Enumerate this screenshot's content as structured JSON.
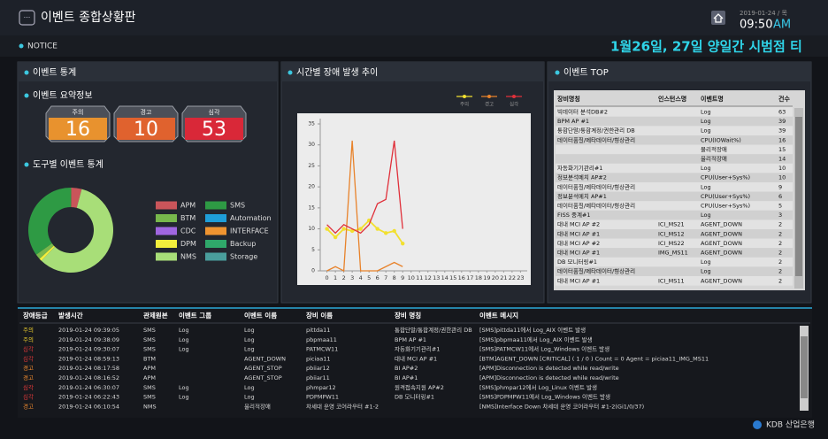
{
  "header": {
    "title": "이벤트 종합상황판",
    "date": "2019-01-24 / 목",
    "time": "09:50",
    "ampm": "AM"
  },
  "notice": {
    "label": "NOTICE",
    "text": "1월26일, 27일 양일간 시범점 티"
  },
  "stats": {
    "title": "이벤트 통계",
    "summary_title": "이벤트 요약정보",
    "summary": [
      {
        "label": "주의",
        "value": 16,
        "color": "#e8922e"
      },
      {
        "label": "경고",
        "value": 10,
        "color": "#e0622e"
      },
      {
        "label": "심각",
        "value": 53,
        "color": "#d92838"
      }
    ],
    "tool_title": "도구별 이벤트 통계"
  },
  "trend": {
    "title": "시간별 장애 발생 추이"
  },
  "chart_data": [
    {
      "type": "donut",
      "categories": [
        "APM",
        "SMS",
        "BTM",
        "Automation",
        "CDC",
        "INTERFACE",
        "DPM",
        "Backup",
        "NMS",
        "Storage"
      ],
      "values": [
        4,
        35,
        2,
        0,
        0,
        0,
        1,
        0,
        58,
        0
      ],
      "colors": [
        "#c9555a",
        "#2e9a44",
        "#78b84c",
        "#1f9ed8",
        "#a066e0",
        "#ef9430",
        "#f3ee3c",
        "#2fa86a",
        "#a8de78",
        "#4a9e9c"
      ]
    },
    {
      "type": "line",
      "x": [
        0,
        1,
        2,
        3,
        4,
        5,
        6,
        7,
        8,
        9,
        10,
        11,
        12,
        13,
        14,
        15,
        16,
        17,
        18,
        19,
        20,
        21,
        22,
        23
      ],
      "xlim": [
        -0.8,
        23.8
      ],
      "xticks": [
        0,
        1,
        2,
        3,
        4,
        5,
        6,
        7,
        8,
        9,
        10,
        11,
        12,
        13,
        14,
        15,
        16,
        17,
        18,
        19,
        20,
        21,
        22,
        23
      ],
      "ylim": [
        0,
        35
      ],
      "yticks": [
        0,
        5,
        10,
        15,
        20,
        25,
        30,
        35
      ],
      "grid": false,
      "series": [
        {
          "name": "주의",
          "color": "#f2e030",
          "values": [
            10,
            8,
            10,
            9.5,
            10,
            12,
            10,
            9,
            9.5,
            6.5,
            null,
            null,
            null,
            null,
            null,
            null,
            null,
            null,
            null,
            null,
            null,
            null,
            null,
            null
          ]
        },
        {
          "name": "경고",
          "color": "#e8822a",
          "values": [
            0,
            1,
            0,
            31,
            0,
            0,
            0,
            1,
            2,
            1,
            null,
            null,
            null,
            null,
            null,
            null,
            null,
            null,
            null,
            null,
            null,
            null,
            null,
            null
          ]
        },
        {
          "name": "심각",
          "color": "#e0303a",
          "values": [
            11,
            9,
            11,
            10,
            9,
            11,
            16,
            17,
            31,
            10,
            null,
            null,
            null,
            null,
            null,
            null,
            null,
            null,
            null,
            null,
            null,
            null,
            null,
            null
          ]
        }
      ]
    }
  ],
  "top": {
    "title": "이벤트 TOP",
    "columns": [
      "장비명칭",
      "인스턴스명",
      "이벤트명",
      "건수"
    ],
    "rows": [
      [
        "빅데이터 분석DB#2",
        "",
        "Log",
        63
      ],
      [
        "BPM AP #1",
        "",
        "Log",
        39
      ],
      [
        "통합단말/통합계정/권한관리 DB",
        "",
        "Log",
        39
      ],
      [
        "데이터품질/메타데이터/형상관리",
        "",
        "CPU(IOWait%)",
        16
      ],
      [
        "",
        "",
        "물리적장애",
        15
      ],
      [
        "",
        "",
        "물리적장애",
        14
      ],
      [
        "자동화기기관리#1",
        "",
        "Log",
        10
      ],
      [
        "정보분석메치 AP#2",
        "",
        "CPU(User+Sys%)",
        10
      ],
      [
        "데이터품질/메타데이터/형상관리",
        "",
        "Log",
        9
      ],
      [
        "정보분석메치 AP#1",
        "",
        "CPU(User+Sys%)",
        6
      ],
      [
        "데이터품질/메타데이터/형상관리",
        "",
        "CPU(User+Sys%)",
        5
      ],
      [
        "FISS 중계#1",
        "",
        "Log",
        3
      ],
      [
        "대내 MCI AP #2",
        "ICI_MS21",
        "AGENT_DOWN",
        2
      ],
      [
        "대내 MCI AP #1",
        "ICI_MS12",
        "AGENT_DOWN",
        2
      ],
      [
        "대내 MCI AP #2",
        "ICI_MS22",
        "AGENT_DOWN",
        2
      ],
      [
        "대내 MCI AP #1",
        "IMG_MS11",
        "AGENT_DOWN",
        2
      ],
      [
        "DB 모니터링#1",
        "",
        "Log",
        2
      ],
      [
        "데이터품질/메타데이터/형상관리",
        "",
        "Log",
        2
      ],
      [
        "대내 MCI AP #1",
        "ICI_MS11",
        "AGENT_DOWN",
        2
      ]
    ]
  },
  "events": {
    "columns": [
      "장애등급",
      "발생시간",
      "관제원본",
      "이벤트 그룹",
      "이벤트 이름",
      "장비 이름",
      "장비 명칭",
      "이벤트 메시지"
    ],
    "grade_colors": {
      "주의": "#f2d22e",
      "경고": "#ef8a2e",
      "심각": "#e83a3a"
    },
    "rows": [
      [
        "주의",
        "2019-01-24 09:39:05",
        "SMS",
        "Log",
        "Log",
        "pittda11",
        "통합단말/통합계정/권한관리 DB",
        "[SMS]pittda11에서 Log_AIX 이벤트 발생"
      ],
      [
        "주의",
        "2019-01-24 09:38:09",
        "SMS",
        "Log",
        "Log",
        "pbpmaa11",
        "BPM AP #1",
        "[SMS]pbpmaa11에서 Log_AIX 이벤트 발생"
      ],
      [
        "심각",
        "2019-01-24 09:30:07",
        "SMS",
        "Log",
        "Log",
        "PATMCW11",
        "자동화기기관리#1",
        "[SMS]PATMCW11에서 Log_Windows 이벤트 발생"
      ],
      [
        "심각",
        "2019-01-24 08:59:13",
        "BTM",
        "",
        "AGENT_DOWN",
        "piciaa11",
        "대내 MCI AP #1",
        "[BTM]AGENT_DOWN [CRITICAL] ( 1 / 0 ) Count = 0 Agent = piciaa11_IMG_MS11"
      ],
      [
        "경고",
        "2019-01-24 08:17:58",
        "APM",
        "",
        "AGENT_STOP",
        "pbiiar12",
        "BI AP#2",
        "[APM]Disconnection is detected while read/write"
      ],
      [
        "경고",
        "2019-01-24 08:16:52",
        "APM",
        "",
        "AGENT_STOP",
        "pbiiar11",
        "BI AP#1",
        "[APM]Disconnection is detected while read/write"
      ],
      [
        "심각",
        "2019-01-24 06:30:07",
        "SMS",
        "Log",
        "Log",
        "phmpar12",
        "원격접속지원 AP#2",
        "[SMS]phmpar12에서 Log_Linux 이벤트 발생"
      ],
      [
        "심각",
        "2019-01-24 06:22:43",
        "SMS",
        "Log",
        "Log",
        "PDPMPW11",
        "DB 모니터링#1",
        "[SMS]PDPMPW11에서 Log_Windows 이벤트 발생"
      ],
      [
        "경고",
        "2019-01-24 06:10:54",
        "NMS",
        "",
        "물리적장애",
        "차세대 운영 코어라우터 #1-2",
        "",
        "[NMS]Interface Down 차세대 운영 코어라우터 #1-2(Gi1/0/37)"
      ]
    ]
  },
  "footer": {
    "brand": "KDB 산업은행"
  }
}
